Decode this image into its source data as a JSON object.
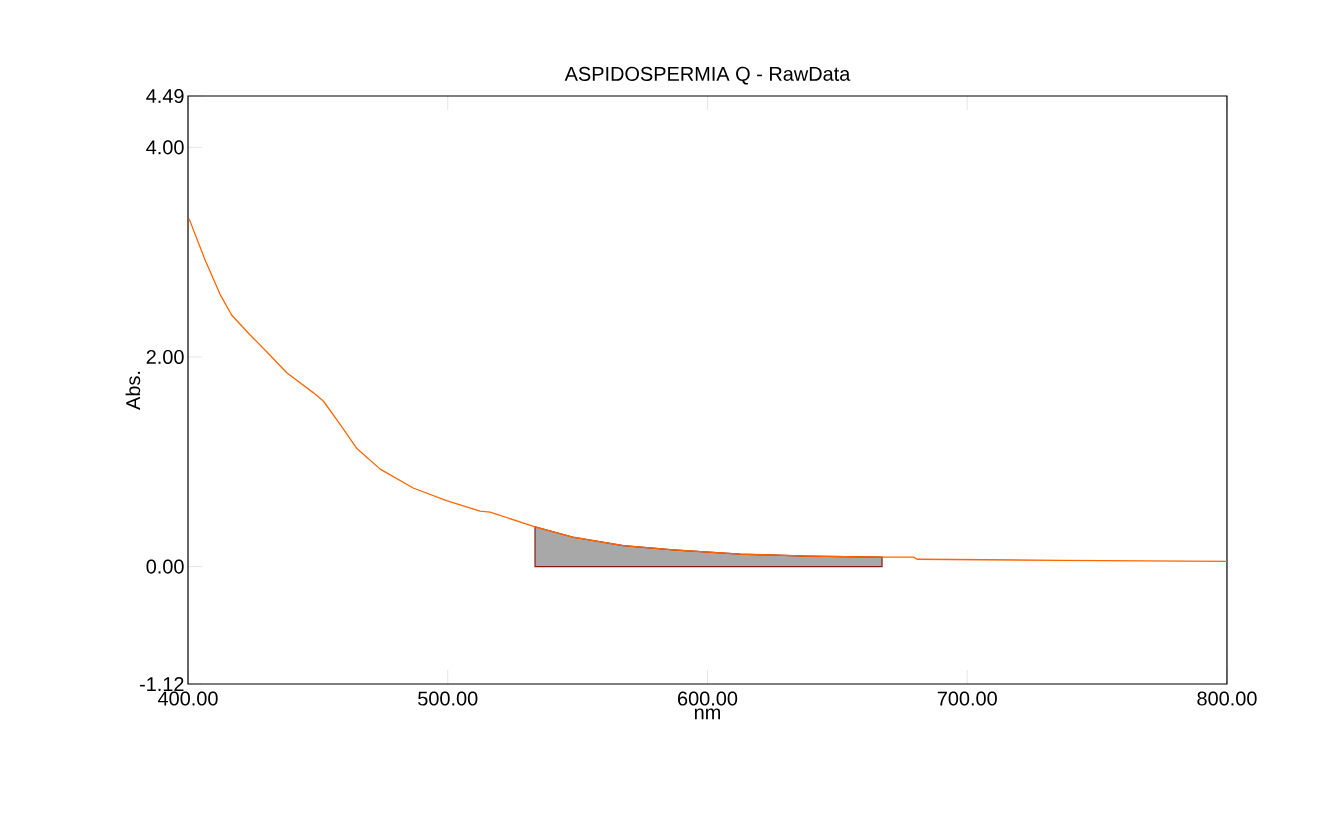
{
  "chart_data": {
    "type": "line",
    "title": "ASPIDOSPERMIA Q - RawData",
    "xlabel": "nm",
    "ylabel": "Abs.",
    "x": [
      400.4,
      406.5,
      412.3,
      416.8,
      423.9,
      430.3,
      438,
      448.2,
      452.1,
      458.5,
      464.9,
      474,
      486.7,
      499.5,
      512.4,
      516.3,
      533.6,
      548.4,
      567.6,
      586.9,
      612.6,
      638.3,
      667.2,
      679.4,
      680.7,
      735.7,
      800
    ],
    "series": [
      {
        "type": "area",
        "color": "#a8a8a8",
        "x": [
          533.6,
          548.4,
          567.6,
          586.9,
          612.6,
          638.3,
          667.2
        ],
        "values": [
          0.38,
          0.28,
          0.2,
          0.16,
          0.12,
          0.1,
          0.09
        ]
      },
      {
        "color": "#ff6600",
        "values": [
          3.32,
          2.93,
          2.6,
          2.4,
          2.21,
          2.05,
          1.85,
          1.66,
          1.58,
          1.36,
          1.13,
          0.93,
          0.75,
          0.63,
          0.53,
          0.52,
          0.38,
          0.28,
          0.2,
          0.16,
          0.12,
          0.1,
          0.09,
          0.09,
          0.07,
          0.06,
          0.05
        ]
      }
    ],
    "xlim": [
      400,
      800
    ],
    "ylim": [
      -1.12,
      4.49
    ],
    "xticks": [
      {
        "value": 400,
        "label": "400.00"
      },
      {
        "value": 500,
        "label": "500.00"
      },
      {
        "value": 600,
        "label": "600.00"
      },
      {
        "value": 700,
        "label": "700.00"
      },
      {
        "value": 800,
        "label": "800.00"
      }
    ],
    "yticks": [
      {
        "value": -1.12,
        "label": "-1.12"
      },
      {
        "value": 0,
        "label": "0.00"
      },
      {
        "value": 2,
        "label": "2.00"
      },
      {
        "value": 4,
        "label": "4.00"
      },
      {
        "value": 4.49,
        "label": "4.49"
      }
    ],
    "grid": false,
    "marker": "none",
    "line_style": "solid"
  }
}
